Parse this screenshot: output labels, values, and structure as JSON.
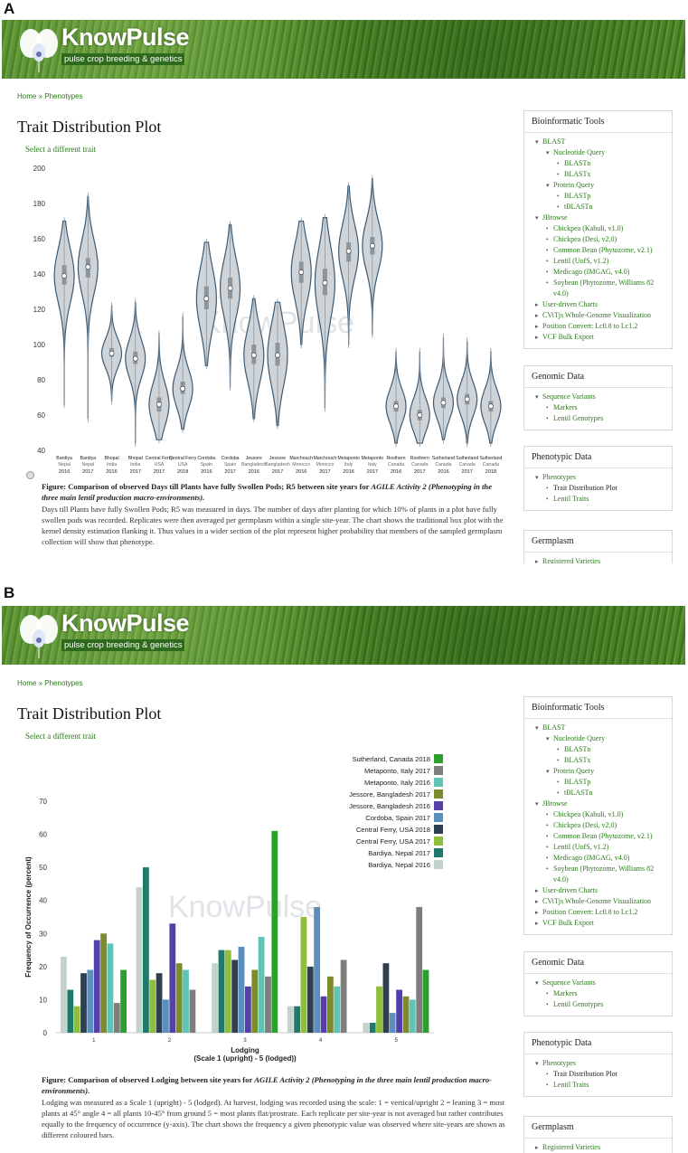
{
  "panel_labels": [
    "A",
    "B"
  ],
  "site": {
    "brand": "KnowPulse",
    "tagline": "pulse crop breeding & genetics"
  },
  "breadcrumb": {
    "home": "Home",
    "sep": "»",
    "current": "Phenotypes"
  },
  "page_title": "Trait Distribution Plot",
  "select_trait": "Select a different trait",
  "sidebar": {
    "tools_title": "Bioinformatic Tools",
    "tools": [
      {
        "label": "BLAST",
        "level": 1,
        "mark": "▾"
      },
      {
        "label": "Nucleotide Query",
        "level": 2,
        "mark": "▾"
      },
      {
        "label": "BLASTn",
        "level": 3,
        "mark": "•"
      },
      {
        "label": "BLASTx",
        "level": 3,
        "mark": "•"
      },
      {
        "label": "Protein Query",
        "level": 2,
        "mark": "▾"
      },
      {
        "label": "BLASTp",
        "level": 3,
        "mark": "•"
      },
      {
        "label": "tBLASTn",
        "level": 3,
        "mark": "•"
      },
      {
        "label": "JBrowse",
        "level": 1,
        "mark": "▾"
      },
      {
        "label": "Chickpea (Kabuli, v1.0)",
        "level": 2,
        "mark": "•"
      },
      {
        "label": "Chickpea (Desi, v2.0)",
        "level": 2,
        "mark": "•"
      },
      {
        "label": "Common Bean (Phytozome, v2.1)",
        "level": 2,
        "mark": "•"
      },
      {
        "label": "Lentil (UofS, v1.2)",
        "level": 2,
        "mark": "•"
      },
      {
        "label": "Medicago (IMGAG, v4.0)",
        "level": 2,
        "mark": "•"
      },
      {
        "label": "Soybean (Phytozome, Williams 82",
        "level": 2,
        "mark": "•"
      },
      {
        "label": "v4.0)",
        "level": 2,
        "mark": ""
      },
      {
        "label": "User-driven Charts",
        "level": 1,
        "mark": "▸"
      },
      {
        "label": "CViTjs Whole-Genome Visualization",
        "level": 1,
        "mark": "▸"
      },
      {
        "label": "Position Convert: Lc0.8 to Lc1.2",
        "level": 1,
        "mark": "▸"
      },
      {
        "label": "VCF Bulk Export",
        "level": 1,
        "mark": "▸"
      }
    ],
    "genomic_title": "Genomic Data",
    "genomic": [
      {
        "label": "Sequence Variants",
        "level": 1,
        "mark": "▾"
      },
      {
        "label": "Markers",
        "level": 2,
        "mark": "•"
      },
      {
        "label": "Lentil Genotypes",
        "level": 2,
        "mark": "•"
      }
    ],
    "pheno_title": "Phenotypic Data",
    "pheno": [
      {
        "label": "Phenotypes",
        "level": 1,
        "mark": "▾"
      },
      {
        "label": "Trait Distribution Plot",
        "level": 2,
        "mark": "•",
        "active": true
      },
      {
        "label": "Lentil Traits",
        "level": 2,
        "mark": "•"
      }
    ],
    "germ_title": "Germplasm",
    "germ": [
      {
        "label": "Registered Varieties",
        "level": 1,
        "mark": "▸"
      }
    ]
  },
  "caption_a": {
    "bold": "Figure: Comparison of observed Days till Plants have fully Swollen Pods; R5 between site years for ",
    "italic": "AGILE Activity 2 (Phenotyping in the three main lentil production macro-environments).",
    "body": "Days till Plants have fully Swollen Pods; R5 was measured in days. The number of days after planting for which 10% of plants in a plot have fully swollen pods was recorded. Replicates were then averaged per germplasm within a single site-year. The chart shows the traditional box plot with the kernel density estimation flanking it. Thus values in a wider section of the plot represent higher probability that members of the sampled germplasm collection will show that phenotype."
  },
  "caption_b": {
    "bold": "Figure: Comparison of observed Lodging between site years for ",
    "italic": "AGILE Activity 2 (Phenotyping in the three main lentil production macro-environments).",
    "body": "Lodging was measured as a Scale 1 (upright) - 5 (lodged). At harvest, lodging was recorded using the scale: 1 = vertical/upright 2 = leaning 3 = most plants at 45° angle 4 = all plants 10-45° from ground 5 = most plants flat/prostrate. Each replicate per site-year is not averaged but rather contributes equally to the frequency of occurrence (y-axis). The chart shows the frequency a given phenotypic value was observed where site-years are shown as different coloured bars."
  },
  "chart_data": [
    {
      "type": "violin",
      "title": "",
      "xlabel": "",
      "ylabel": "",
      "ylim": [
        40,
        200
      ],
      "yticks": [
        40,
        60,
        80,
        100,
        120,
        140,
        160,
        180,
        200
      ],
      "watermark": "KnowPulse",
      "color": "#3d5a73",
      "groups": [
        {
          "site": "Bardiya",
          "country": "Nepal",
          "year": "2016",
          "min": 66,
          "q1": 134,
          "median": 139,
          "q3": 145,
          "max": 170
        },
        {
          "site": "Bardiya",
          "country": "Nepal",
          "year": "2017",
          "min": 58,
          "q1": 138,
          "median": 144,
          "q3": 149,
          "max": 184
        },
        {
          "site": "Bhopal",
          "country": "India",
          "year": "2016",
          "min": 68,
          "q1": 93,
          "median": 95,
          "q3": 98,
          "max": 122
        },
        {
          "site": "Bhopal",
          "country": "India",
          "year": "2017",
          "min": 44,
          "q1": 89,
          "median": 92,
          "q3": 96,
          "max": 124
        },
        {
          "site": "Central Ferry",
          "country": "USA",
          "year": "2017",
          "min": 46,
          "q1": 62,
          "median": 66,
          "q3": 70,
          "max": 106
        },
        {
          "site": "Central Ferry",
          "country": "USA",
          "year": "2018",
          "min": 52,
          "q1": 72,
          "median": 75,
          "q3": 79,
          "max": 116
        },
        {
          "site": "Cordoba",
          "country": "Spain",
          "year": "2016",
          "min": 88,
          "q1": 120,
          "median": 126,
          "q3": 133,
          "max": 158
        },
        {
          "site": "Cordoba",
          "country": "Spain",
          "year": "2017",
          "min": 76,
          "q1": 126,
          "median": 132,
          "q3": 138,
          "max": 168
        },
        {
          "site": "Jessore",
          "country": "Bangladesh",
          "year": "2016",
          "min": 58,
          "q1": 89,
          "median": 94,
          "q3": 100,
          "max": 126
        },
        {
          "site": "Jessore",
          "country": "Bangladesh",
          "year": "2017",
          "min": 54,
          "q1": 88,
          "median": 94,
          "q3": 101,
          "max": 124
        },
        {
          "site": "Marchouch",
          "country": "Morocco",
          "year": "2016",
          "min": 100,
          "q1": 135,
          "median": 141,
          "q3": 147,
          "max": 170
        },
        {
          "site": "Marchouch",
          "country": "Morocco",
          "year": "2017",
          "min": 64,
          "q1": 128,
          "median": 135,
          "q3": 143,
          "max": 172
        },
        {
          "site": "Metaponto",
          "country": "Italy",
          "year": "2016",
          "min": 100,
          "q1": 147,
          "median": 153,
          "q3": 158,
          "max": 190
        },
        {
          "site": "Metaponto",
          "country": "Italy",
          "year": "2017",
          "min": 106,
          "q1": 151,
          "median": 156,
          "q3": 161,
          "max": 194
        },
        {
          "site": "Rosthern",
          "country": "Canada",
          "year": "2016",
          "min": 44,
          "q1": 62,
          "median": 65,
          "q3": 68,
          "max": 96
        },
        {
          "site": "Rosthern",
          "country": "Canada",
          "year": "2017",
          "min": 44,
          "q1": 57,
          "median": 60,
          "q3": 63,
          "max": 96
        },
        {
          "site": "Sutherland",
          "country": "Canada",
          "year": "2016",
          "min": 46,
          "q1": 64,
          "median": 67,
          "q3": 70,
          "max": 104
        },
        {
          "site": "Sutherland",
          "country": "Canada",
          "year": "2017",
          "min": 44,
          "q1": 66,
          "median": 69,
          "q3": 72,
          "max": 102
        },
        {
          "site": "Sutherland",
          "country": "Canada",
          "year": "2018",
          "min": 44,
          "q1": 62,
          "median": 65,
          "q3": 68,
          "max": 96
        }
      ]
    },
    {
      "type": "bar",
      "title": "",
      "xlabel": "Lodging",
      "xlabel2": "(Scale 1 (upright) - 5 (lodged))",
      "ylabel": "Frequency of Occurrence (percent)",
      "ylim": [
        0,
        70
      ],
      "yticks": [
        0,
        10,
        20,
        30,
        40,
        50,
        60,
        70
      ],
      "categories": [
        "1",
        "2",
        "3",
        "4",
        "5"
      ],
      "watermark": "KnowPulse",
      "legend_position": "top-right",
      "series": [
        {
          "name": "Bardiya, Nepal 2016",
          "color": "#c4d2cc",
          "values": [
            23,
            44,
            21,
            8,
            3
          ]
        },
        {
          "name": "Bardiya, Nepal 2017",
          "color": "#1f7a6c",
          "values": [
            13,
            50,
            25,
            8,
            3
          ]
        },
        {
          "name": "Central Ferry, USA 2017",
          "color": "#8fbf3a",
          "values": [
            8,
            16,
            25,
            35,
            14
          ]
        },
        {
          "name": "Central Ferry, USA 2018",
          "color": "#2e3f4f",
          "values": [
            18,
            18,
            22,
            20,
            21
          ]
        },
        {
          "name": "Cordoba, Spain 2017",
          "color": "#5a8fc0",
          "values": [
            19,
            10,
            26,
            38,
            6
          ]
        },
        {
          "name": "Jessore, Bangladesh 2016",
          "color": "#5440a8",
          "values": [
            28,
            33,
            14,
            11,
            13
          ]
        },
        {
          "name": "Jessore, Bangladesh 2017",
          "color": "#7d8a2e",
          "values": [
            30,
            21,
            19,
            17,
            11
          ]
        },
        {
          "name": "Metaponto, Italy 2016",
          "color": "#5ec4b6",
          "values": [
            27,
            19,
            29,
            14,
            10
          ]
        },
        {
          "name": "Metaponto, Italy 2017",
          "color": "#7e7e7e",
          "values": [
            9,
            13,
            17,
            22,
            38
          ]
        },
        {
          "name": "Sutherland, Canada 2018",
          "color": "#2ca02c",
          "values": [
            19,
            0,
            61,
            0,
            19
          ]
        }
      ]
    }
  ]
}
